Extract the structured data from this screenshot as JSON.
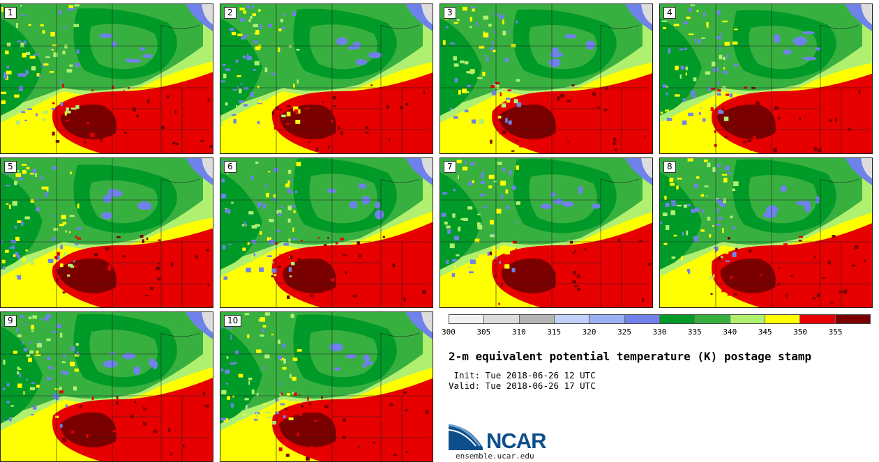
{
  "panels": [
    {
      "label": "1"
    },
    {
      "label": "2"
    },
    {
      "label": "3"
    },
    {
      "label": "4"
    },
    {
      "label": "5"
    },
    {
      "label": "6"
    },
    {
      "label": "7"
    },
    {
      "label": "8"
    },
    {
      "label": "9"
    },
    {
      "label": "10"
    }
  ],
  "colorbar": {
    "ticks": [
      "300",
      "305",
      "310",
      "315",
      "320",
      "325",
      "330",
      "335",
      "340",
      "345",
      "350",
      "355"
    ],
    "colors": [
      "#f2f2f2",
      "#dcdcdc",
      "#b4b4b4",
      "#c0d0f8",
      "#9cb0f4",
      "#6f82ea",
      "#009a28",
      "#38b040",
      "#b0f070",
      "#ffff00",
      "#e60000",
      "#7a0000"
    ]
  },
  "title": "2-m equivalent potential temperature (K) postage stamp",
  "init": " Init: Tue 2018-06-26 12 UTC",
  "valid": "Valid: Tue 2018-06-26 17 UTC",
  "logo": {
    "name": "NCAR",
    "url": "ensemble.ucar.edu"
  }
}
